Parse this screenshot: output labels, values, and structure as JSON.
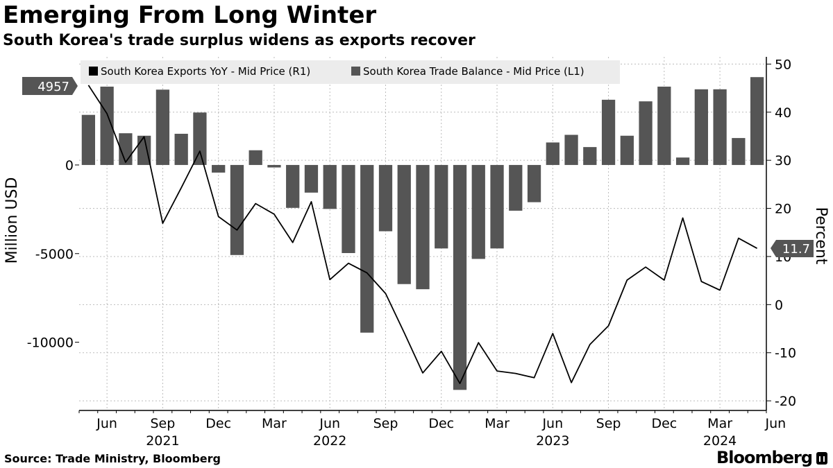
{
  "header": {
    "title": "Emerging From Long Winter",
    "subtitle": "South Korea's trade surplus widens as exports recover"
  },
  "footer": {
    "source": "Source: Trade Ministry, Bloomberg",
    "brand": "Bloomberg"
  },
  "colors": {
    "bar": "#555555",
    "line": "#000000",
    "grid": "#bbbbbb",
    "legend_bg": "#ececec",
    "flag": "#555555"
  },
  "chart_data": {
    "type": "bar+line",
    "title": "Emerging From Long Winter",
    "subtitle": "South Korea's trade surplus widens as exports recover",
    "categories": [
      "2021-05",
      "2021-06",
      "2021-07",
      "2021-08",
      "2021-09",
      "2021-10",
      "2021-11",
      "2021-12",
      "2022-01",
      "2022-02",
      "2022-03",
      "2022-04",
      "2022-05",
      "2022-06",
      "2022-07",
      "2022-08",
      "2022-09",
      "2022-10",
      "2022-11",
      "2022-12",
      "2023-01",
      "2023-02",
      "2023-03",
      "2023-04",
      "2023-05",
      "2023-06",
      "2023-07",
      "2023-08",
      "2023-09",
      "2023-10",
      "2023-11",
      "2023-12",
      "2024-01",
      "2024-02",
      "2024-03",
      "2024-04",
      "2024-05"
    ],
    "x_tick_labels": [
      "Jun",
      "Sep",
      "Dec",
      "Mar",
      "Jun",
      "Sep",
      "Dec",
      "Mar",
      "Jun",
      "Sep",
      "Dec",
      "Mar",
      "Jun"
    ],
    "x_tick_months": [
      "2021-06",
      "2021-09",
      "2021-12",
      "2022-03",
      "2022-06",
      "2022-09",
      "2022-12",
      "2023-03",
      "2023-06",
      "2023-09",
      "2023-12",
      "2024-03",
      "2024-06"
    ],
    "year_labels": [
      {
        "label": "2021",
        "month": "2021-09"
      },
      {
        "label": "2022",
        "month": "2022-06"
      },
      {
        "label": "2023",
        "month": "2023-06"
      },
      {
        "label": "2024",
        "month": "2024-03"
      }
    ],
    "series": [
      {
        "name": "South Korea Exports YoY - Mid Price (R1)",
        "type": "line",
        "axis": "right",
        "values": [
          45.6,
          39.7,
          29.6,
          34.9,
          16.9,
          24.3,
          31.9,
          18.3,
          15.5,
          21.0,
          18.8,
          12.9,
          21.4,
          5.2,
          8.6,
          6.6,
          2.3,
          -5.8,
          -14.2,
          -9.7,
          -16.4,
          -7.9,
          -13.8,
          -14.3,
          -15.2,
          -6.0,
          -16.2,
          -8.3,
          -4.4,
          5.1,
          7.8,
          5.1,
          18.0,
          4.8,
          3.0,
          13.8,
          11.7
        ]
      },
      {
        "name": "South Korea Trade Balance - Mid Price (L1)",
        "type": "bar",
        "axis": "left",
        "values": [
          2826,
          4420,
          1790,
          1650,
          4250,
          1760,
          2960,
          -430,
          -5080,
          830,
          -140,
          -2420,
          -1560,
          -2480,
          -4970,
          -9460,
          -3740,
          -6720,
          -7010,
          -4710,
          -12690,
          -5300,
          -4710,
          -2580,
          -2100,
          1270,
          1700,
          1010,
          3680,
          1650,
          3590,
          4420,
          420,
          4270,
          4270,
          1520,
          4957
        ]
      }
    ],
    "y_left": {
      "label": "Million USD",
      "ticks": [
        0,
        -5000,
        -10000
      ],
      "range": [
        -13850,
        6100
      ]
    },
    "y_right": {
      "label": "Percent",
      "ticks": [
        50,
        40,
        30,
        20,
        10,
        0,
        -10,
        -20
      ],
      "range": [
        -22,
        51.5
      ]
    },
    "flags": {
      "left_value": "4957",
      "right_value": "11.7"
    },
    "legend_position": "top-left"
  }
}
